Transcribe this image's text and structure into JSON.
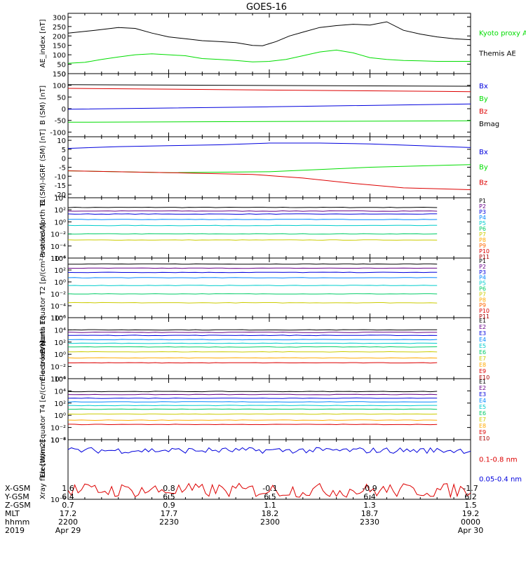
{
  "title": "GOES-16",
  "time_axis": {
    "tick_times": [
      "2200",
      "2230",
      "2300",
      "2330",
      "0000"
    ]
  },
  "ephemeris": {
    "rows": [
      {
        "label": "X-GSM",
        "values": [
          "1.6",
          "0.8",
          "-0.1",
          "-0.9",
          "-1.7"
        ]
      },
      {
        "label": "Y-GSM",
        "values": [
          "6.4",
          "6.5",
          "6.5",
          "6.4",
          "6.2"
        ]
      },
      {
        "label": "Z-GSM",
        "values": [
          "0.7",
          "0.9",
          "1.1",
          "1.3",
          "1.5"
        ]
      },
      {
        "label": "MLT",
        "values": [
          "17.2",
          "17.7",
          "18.2",
          "18.7",
          "19.2"
        ]
      },
      {
        "label": "hhmm",
        "values": [
          "2200",
          "2230",
          "2300",
          "2330",
          "0000"
        ]
      },
      {
        "label": "2019",
        "values": [
          "Apr 29",
          "",
          "",
          "",
          "Apr 30"
        ]
      }
    ]
  },
  "chart_data": [
    {
      "type": "line",
      "ylabel": "AE_index [nT]",
      "ylim": [
        0,
        320
      ],
      "yticks": [
        0,
        50,
        100,
        150,
        200,
        250,
        300
      ],
      "ytick_labels": [
        "0",
        "50",
        "100",
        "150",
        "200",
        "250",
        "300"
      ],
      "legend": [
        {
          "text": "Kyoto proxy AE",
          "color": "#00dd00"
        },
        {
          "text": "Themis AE",
          "color": "#000000"
        }
      ],
      "series": [
        {
          "color": "#000000",
          "x": [
            0,
            8,
            15,
            20,
            25,
            30,
            35,
            40,
            45,
            50,
            55,
            58,
            62,
            66,
            70,
            75,
            80,
            85,
            90,
            95,
            100,
            105,
            110,
            115,
            120
          ],
          "y": [
            215,
            230,
            245,
            240,
            215,
            195,
            185,
            175,
            170,
            165,
            150,
            148,
            170,
            200,
            220,
            245,
            255,
            262,
            258,
            275,
            230,
            210,
            195,
            185,
            180
          ]
        },
        {
          "color": "#00dd00",
          "x": [
            0,
            5,
            10,
            15,
            20,
            25,
            30,
            35,
            40,
            45,
            50,
            55,
            60,
            65,
            70,
            75,
            80,
            85,
            90,
            95,
            100,
            105,
            110,
            115,
            120
          ],
          "y": [
            55,
            60,
            75,
            88,
            100,
            105,
            100,
            95,
            80,
            75,
            70,
            62,
            65,
            75,
            95,
            115,
            125,
            110,
            85,
            75,
            70,
            68,
            65,
            65,
            65
          ]
        }
      ]
    },
    {
      "type": "line",
      "ylabel": "B (SM) [nT]",
      "ylim": [
        -120,
        150
      ],
      "yticks": [
        -100,
        -50,
        0,
        50,
        100,
        150
      ],
      "ytick_labels": [
        "-100",
        "-50",
        "0",
        "50",
        "100",
        "150"
      ],
      "legend": [
        {
          "text": "Bx",
          "color": "#0000dd"
        },
        {
          "text": "By",
          "color": "#00dd00"
        },
        {
          "text": "Bz",
          "color": "#dd0000"
        },
        {
          "text": "Bmag",
          "color": "#000000"
        }
      ],
      "series": [
        {
          "color": "#000000",
          "x": [
            0,
            120
          ],
          "y": [
            103,
            96
          ]
        },
        {
          "color": "#dd0000",
          "x": [
            0,
            120
          ],
          "y": [
            87,
            73
          ]
        },
        {
          "color": "#0000dd",
          "x": [
            0,
            60,
            120
          ],
          "y": [
            -2,
            8,
            20
          ]
        },
        {
          "color": "#00dd00",
          "x": [
            0,
            120
          ],
          "y": [
            -58,
            -52
          ]
        }
      ]
    },
    {
      "type": "line",
      "ylabel": "B (SM)-IGRF (SM) [nT]",
      "ylim": [
        -22,
        12
      ],
      "yticks": [
        -20,
        -15,
        -10,
        -5,
        0,
        5,
        10
      ],
      "ytick_labels": [
        "-20",
        "-15",
        "-10",
        "-5",
        "0",
        "5",
        "10"
      ],
      "legend": [
        {
          "text": "Bx",
          "color": "#0000dd"
        },
        {
          "text": "By",
          "color": "#00dd00"
        },
        {
          "text": "Bz",
          "color": "#dd0000"
        }
      ],
      "series": [
        {
          "color": "#0000dd",
          "x": [
            0,
            15,
            30,
            45,
            60,
            75,
            90,
            105,
            120
          ],
          "y": [
            5.5,
            6.5,
            7,
            7.5,
            8.5,
            8.5,
            8,
            7,
            6
          ]
        },
        {
          "color": "#00dd00",
          "x": [
            0,
            30,
            60,
            90,
            120
          ],
          "y": [
            -7,
            -8,
            -7.5,
            -5,
            -3.5
          ]
        },
        {
          "color": "#dd0000",
          "x": [
            0,
            30,
            55,
            70,
            85,
            100,
            120
          ],
          "y": [
            -7,
            -8,
            -9,
            -11,
            -14,
            -16.5,
            -17.5
          ]
        }
      ]
    },
    {
      "type": "line",
      "log_scale": true,
      "ylabel": "Protons North T1",
      "ylim": [
        -6,
        4
      ],
      "yticks": [
        -6,
        -4,
        -2,
        0,
        2,
        4
      ],
      "ytick_labels": [
        "10⁻⁶",
        "10⁻⁴",
        "10⁻²",
        "10⁰",
        "10²",
        "10⁴"
      ],
      "legend": [
        {
          "text": "P1",
          "color": "#000000"
        },
        {
          "text": "P2",
          "color": "#660088"
        },
        {
          "text": "P3",
          "color": "#0000dd"
        },
        {
          "text": "P4",
          "color": "#0088ff"
        },
        {
          "text": "P5",
          "color": "#00cccc"
        },
        {
          "text": "P6",
          "color": "#00cc66"
        },
        {
          "text": "P7",
          "color": "#cccc00"
        },
        {
          "text": "P8",
          "color": "#ffaa00"
        },
        {
          "text": "P9",
          "color": "#ff6600"
        },
        {
          "text": "P10",
          "color": "#dd0000"
        },
        {
          "text": "P11",
          "color": "#aa0000"
        }
      ],
      "series": [
        {
          "color": "#000000",
          "levels": [
            2.4
          ]
        },
        {
          "color": "#660088",
          "levels": [
            1.8
          ]
        },
        {
          "color": "#0000dd",
          "levels": [
            1.3
          ]
        },
        {
          "color": "#0088ff",
          "levels": [
            0.4
          ]
        },
        {
          "color": "#00cccc",
          "levels": [
            -0.6
          ]
        },
        {
          "color": "#00cc66",
          "levels": [
            -2.0
          ]
        },
        {
          "color": "#cccc00",
          "levels": [
            -3.0
          ]
        }
      ]
    },
    {
      "type": "line",
      "log_scale": true,
      "ylabel": "Protons Equator T2 [p/(cm²-s-sr-keV)]",
      "ylim": [
        -6,
        4
      ],
      "yticks": [
        -6,
        -4,
        -2,
        0,
        2,
        4
      ],
      "ytick_labels": [
        "10⁻⁶",
        "10⁻⁴",
        "10⁻²",
        "10⁰",
        "10²",
        "10⁴"
      ],
      "legend": [
        {
          "text": "P1",
          "color": "#000000"
        },
        {
          "text": "P2",
          "color": "#660088"
        },
        {
          "text": "P3",
          "color": "#0000dd"
        },
        {
          "text": "P4",
          "color": "#0088ff"
        },
        {
          "text": "P5",
          "color": "#00cccc"
        },
        {
          "text": "P6",
          "color": "#00cc66"
        },
        {
          "text": "P7",
          "color": "#cccc00"
        },
        {
          "text": "P8",
          "color": "#ffaa00"
        },
        {
          "text": "P9",
          "color": "#ff6600"
        },
        {
          "text": "P10",
          "color": "#dd0000"
        },
        {
          "text": "P11",
          "color": "#aa0000"
        }
      ],
      "series": [
        {
          "color": "#000000",
          "levels": [
            3.0
          ]
        },
        {
          "color": "#660088",
          "levels": [
            2.3
          ]
        },
        {
          "color": "#0000dd",
          "levels": [
            1.6
          ]
        },
        {
          "color": "#0088ff",
          "levels": [
            0.7
          ]
        },
        {
          "color": "#00cccc",
          "levels": [
            -0.6
          ]
        },
        {
          "color": "#00cc66",
          "levels": [
            -2.0
          ]
        },
        {
          "color": "#cccc00",
          "levels": [
            -3.5
          ]
        }
      ]
    },
    {
      "type": "line",
      "log_scale": true,
      "ylabel": "Electrons North T3",
      "ylim": [
        -4,
        6
      ],
      "yticks": [
        -4,
        -2,
        0,
        2,
        4,
        6
      ],
      "ytick_labels": [
        "10⁻⁴",
        "10⁻²",
        "10⁰",
        "10²",
        "10⁴",
        "10⁶"
      ],
      "legend": [
        {
          "text": "E1",
          "color": "#000000"
        },
        {
          "text": "E2",
          "color": "#660088"
        },
        {
          "text": "E3",
          "color": "#0000dd"
        },
        {
          "text": "E4",
          "color": "#0088ff"
        },
        {
          "text": "E5",
          "color": "#00cccc"
        },
        {
          "text": "E6",
          "color": "#00cc66"
        },
        {
          "text": "E7",
          "color": "#cccc00"
        },
        {
          "text": "E8",
          "color": "#ffaa00"
        },
        {
          "text": "E9",
          "color": "#dd0000"
        },
        {
          "text": "E10",
          "color": "#aa0000"
        }
      ],
      "series": [
        {
          "color": "#000000",
          "levels": [
            4.0
          ]
        },
        {
          "color": "#660088",
          "levels": [
            3.6
          ]
        },
        {
          "color": "#0000dd",
          "levels": [
            3.1
          ]
        },
        {
          "color": "#0088ff",
          "levels": [
            2.4
          ]
        },
        {
          "color": "#00cccc",
          "levels": [
            1.8
          ]
        },
        {
          "color": "#00cc66",
          "levels": [
            1.2
          ]
        },
        {
          "color": "#cccc00",
          "levels": [
            0.4
          ]
        },
        {
          "color": "#ffaa00",
          "levels": [
            -0.6
          ]
        },
        {
          "color": "#dd0000",
          "levels": [
            -1.4
          ]
        }
      ]
    },
    {
      "type": "line",
      "log_scale": true,
      "ylabel": "Electrons Equator T4 [e/(cm²-s-sr-keV)]",
      "ylim": [
        -4,
        6
      ],
      "yticks": [
        -4,
        -2,
        0,
        2,
        4,
        6
      ],
      "ytick_labels": [
        "10⁻⁴",
        "10⁻²",
        "10⁰",
        "10²",
        "10⁴",
        "10⁶"
      ],
      "legend": [
        {
          "text": "E1",
          "color": "#000000"
        },
        {
          "text": "E2",
          "color": "#660088"
        },
        {
          "text": "E3",
          "color": "#0000dd"
        },
        {
          "text": "E4",
          "color": "#0088ff"
        },
        {
          "text": "E5",
          "color": "#00cccc"
        },
        {
          "text": "E6",
          "color": "#00cc66"
        },
        {
          "text": "E7",
          "color": "#cccc00"
        },
        {
          "text": "E8",
          "color": "#ffaa00"
        },
        {
          "text": "E9",
          "color": "#dd0000"
        },
        {
          "text": "E10",
          "color": "#aa0000"
        }
      ],
      "series": [
        {
          "color": "#000000",
          "levels": [
            3.9
          ]
        },
        {
          "color": "#660088",
          "levels": [
            3.4
          ]
        },
        {
          "color": "#0000dd",
          "levels": [
            2.8
          ]
        },
        {
          "color": "#0088ff",
          "levels": [
            2.2
          ]
        },
        {
          "color": "#00cccc",
          "levels": [
            1.6
          ]
        },
        {
          "color": "#00cc66",
          "levels": [
            1.0
          ]
        },
        {
          "color": "#cccc00",
          "levels": [
            0.2
          ]
        },
        {
          "color": "#ffaa00",
          "levels": [
            -0.8
          ]
        },
        {
          "color": "#dd0000",
          "levels": [
            -1.5
          ]
        }
      ]
    },
    {
      "type": "line",
      "log_scale": true,
      "ylabel": "Xray flux [W/m2]",
      "ylim": [
        -9,
        -8
      ],
      "yticks": [
        -9,
        -8
      ],
      "ytick_labels": [
        "10⁻⁹",
        "10⁻⁸"
      ],
      "legend": [
        {
          "text": "0.1-0.8 nm",
          "color": "#dd0000"
        },
        {
          "text": "0.05-0.4 nm",
          "color": "#0000dd"
        }
      ],
      "series": [
        {
          "color": "#0000dd",
          "noise_center": -8.18,
          "noise_amp": 0.05
        },
        {
          "color": "#dd0000",
          "noise_center": -8.85,
          "noise_amp": 0.12
        }
      ]
    }
  ]
}
